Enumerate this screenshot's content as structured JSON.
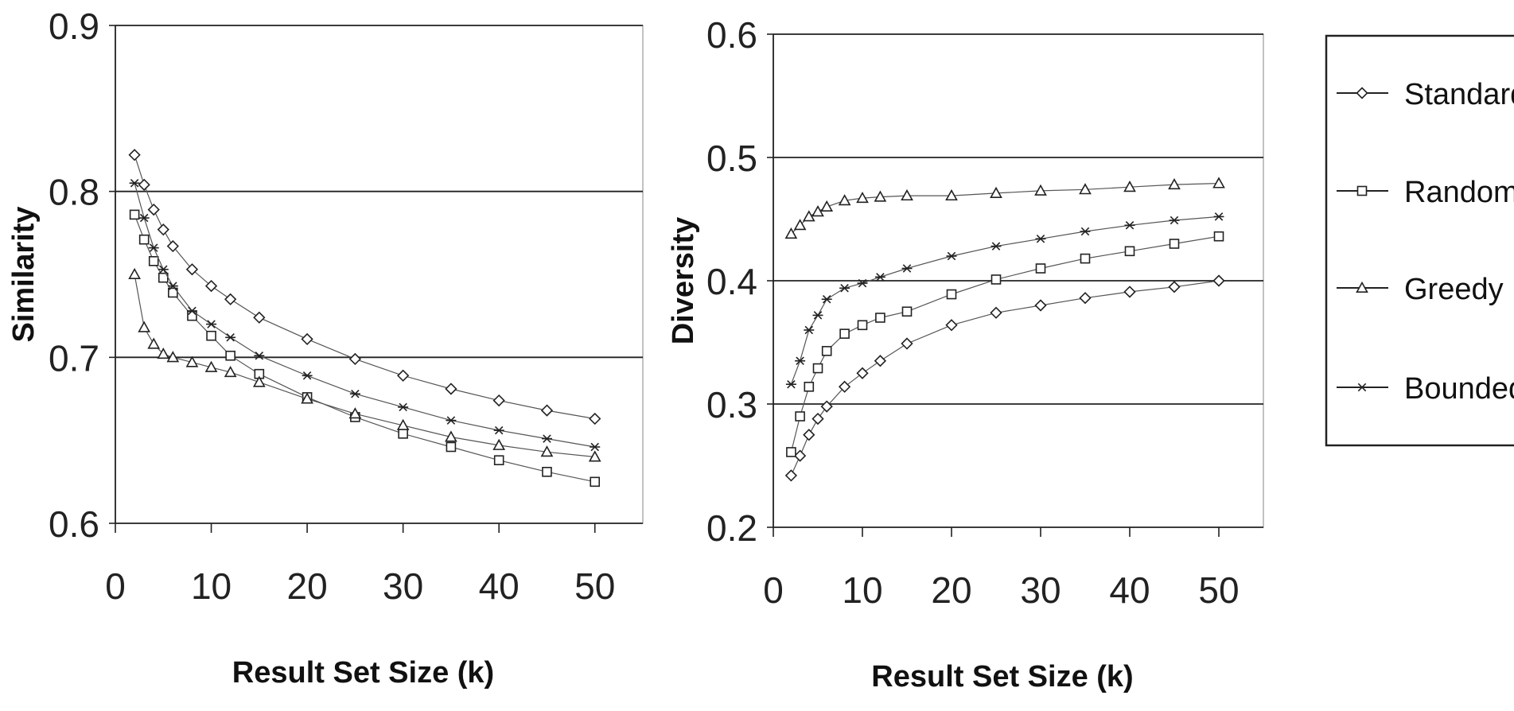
{
  "chart_data": [
    {
      "type": "line",
      "xlabel": "Result Set Size (k)",
      "ylabel": "Similarity",
      "xlim": [
        0,
        55
      ],
      "ylim": [
        0.6,
        0.9
      ],
      "xticks": [
        0,
        10,
        20,
        30,
        40,
        50
      ],
      "yticks": [
        0.6,
        0.7,
        0.8,
        0.9
      ],
      "ytick_labels": [
        "0.6",
        "0.7",
        "0.8",
        "0.9"
      ],
      "grid": "horizontal",
      "series": [
        {
          "name": "Standard",
          "marker": "diamond",
          "x": [
            2,
            3,
            4,
            5,
            6,
            8,
            10,
            12,
            15,
            20,
            25,
            30,
            35,
            40,
            45,
            50
          ],
          "y": [
            0.822,
            0.804,
            0.789,
            0.777,
            0.767,
            0.753,
            0.743,
            0.735,
            0.724,
            0.711,
            0.699,
            0.689,
            0.681,
            0.674,
            0.668,
            0.663
          ]
        },
        {
          "name": "Random",
          "marker": "square",
          "x": [
            2,
            3,
            4,
            5,
            6,
            8,
            10,
            12,
            15,
            20,
            25,
            30,
            35,
            40,
            45,
            50
          ],
          "y": [
            0.786,
            0.771,
            0.758,
            0.748,
            0.739,
            0.725,
            0.713,
            0.701,
            0.69,
            0.676,
            0.664,
            0.654,
            0.646,
            0.638,
            0.631,
            0.625
          ]
        },
        {
          "name": "Greedy",
          "marker": "triangle",
          "x": [
            2,
            3,
            4,
            5,
            6,
            8,
            10,
            12,
            15,
            20,
            25,
            30,
            35,
            40,
            45,
            50
          ],
          "y": [
            0.75,
            0.718,
            0.708,
            0.702,
            0.7,
            0.697,
            0.694,
            0.691,
            0.685,
            0.675,
            0.666,
            0.659,
            0.652,
            0.647,
            0.643,
            0.64
          ]
        },
        {
          "name": "Bounded",
          "marker": "asterisk",
          "x": [
            2,
            3,
            4,
            5,
            6,
            8,
            10,
            12,
            15,
            20,
            25,
            30,
            35,
            40,
            45,
            50
          ],
          "y": [
            0.805,
            0.784,
            0.766,
            0.753,
            0.743,
            0.728,
            0.72,
            0.712,
            0.701,
            0.689,
            0.678,
            0.67,
            0.662,
            0.656,
            0.651,
            0.646
          ]
        }
      ]
    },
    {
      "type": "line",
      "xlabel": "Result Set Size (k)",
      "ylabel": "Diversity",
      "xlim": [
        0,
        55
      ],
      "ylim": [
        0.2,
        0.6
      ],
      "xticks": [
        0,
        10,
        20,
        30,
        40,
        50
      ],
      "yticks": [
        0.2,
        0.3,
        0.4,
        0.5,
        0.6
      ],
      "ytick_labels": [
        "0.2",
        "0.3",
        "0.4",
        "0.5",
        "0.6"
      ],
      "grid": "horizontal",
      "series": [
        {
          "name": "Standard",
          "marker": "diamond",
          "x": [
            2,
            3,
            4,
            5,
            6,
            8,
            10,
            12,
            15,
            20,
            25,
            30,
            35,
            40,
            45,
            50
          ],
          "y": [
            0.242,
            0.258,
            0.275,
            0.288,
            0.298,
            0.314,
            0.325,
            0.335,
            0.349,
            0.364,
            0.374,
            0.38,
            0.386,
            0.391,
            0.395,
            0.4
          ]
        },
        {
          "name": "Random",
          "marker": "square",
          "x": [
            2,
            3,
            4,
            5,
            6,
            8,
            10,
            12,
            15,
            20,
            25,
            30,
            35,
            40,
            45,
            50
          ],
          "y": [
            0.261,
            0.29,
            0.314,
            0.329,
            0.343,
            0.357,
            0.364,
            0.37,
            0.375,
            0.389,
            0.401,
            0.41,
            0.418,
            0.424,
            0.43,
            0.436
          ]
        },
        {
          "name": "Greedy",
          "marker": "triangle",
          "x": [
            2,
            3,
            4,
            5,
            6,
            8,
            10,
            12,
            15,
            20,
            25,
            30,
            35,
            40,
            45,
            50
          ],
          "y": [
            0.438,
            0.445,
            0.452,
            0.456,
            0.46,
            0.465,
            0.467,
            0.468,
            0.469,
            0.469,
            0.471,
            0.473,
            0.474,
            0.476,
            0.478,
            0.479
          ]
        },
        {
          "name": "Bounded",
          "marker": "asterisk",
          "x": [
            2,
            3,
            4,
            5,
            6,
            8,
            10,
            12,
            15,
            20,
            25,
            30,
            35,
            40,
            45,
            50
          ],
          "y": [
            0.316,
            0.335,
            0.36,
            0.372,
            0.385,
            0.394,
            0.398,
            0.403,
            0.41,
            0.42,
            0.428,
            0.434,
            0.44,
            0.445,
            0.449,
            0.452
          ]
        }
      ]
    }
  ],
  "legend": {
    "placement": "right",
    "items": [
      {
        "label": "Standard",
        "marker": "diamond"
      },
      {
        "label": "Random",
        "marker": "square"
      },
      {
        "label": "Greedy",
        "marker": "triangle"
      },
      {
        "label": "Bounded",
        "marker": "asterisk"
      }
    ]
  }
}
